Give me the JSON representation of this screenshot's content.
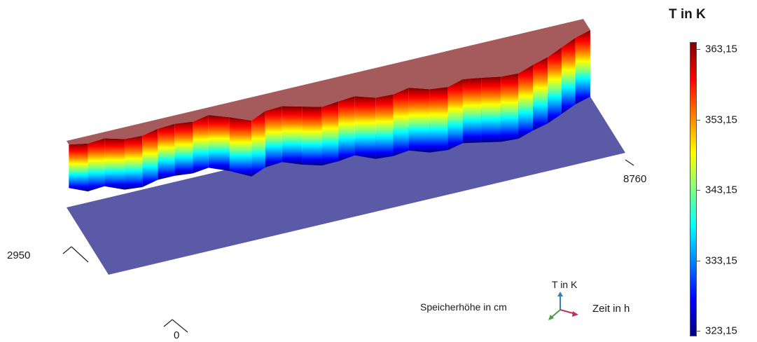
{
  "chart_data": {
    "type": "surface",
    "colorbar": {
      "title": "T in K",
      "ticks": [
        "363,15",
        "353,15",
        "343,15",
        "333,15",
        "323,15"
      ],
      "range": [
        323.15,
        363.15
      ],
      "colormap": [
        "#00007f",
        "#0000ff",
        "#0080ff",
        "#00ffff",
        "#80ff80",
        "#ffff00",
        "#ff8000",
        "#ff0000",
        "#7f0000"
      ]
    },
    "axes": {
      "height_label": "Speicherhöhe in cm",
      "time_label": "Zeit in h",
      "value_label": "T in K",
      "height_tick_max": "2950",
      "time_tick_max": "8760",
      "origin_tick": "0",
      "time_range_h": [
        0,
        8760
      ],
      "height_range_cm": [
        0,
        2950
      ]
    },
    "surface": {
      "hot_color": "#a55a5c",
      "cold_color": "#5a5aa6",
      "front_profile": [
        0.13,
        0.3,
        0.3,
        0.4,
        0.43,
        0.42,
        0.45,
        0.44,
        0.48,
        0.52,
        0.6,
        0.62,
        0.6,
        0.68,
        0.7,
        0.75,
        0.72,
        0.8,
        0.82,
        0.86,
        0.88,
        0.87,
        0.9,
        0.93,
        0.95,
        0.96,
        0.97,
        0.99,
        1.0,
        1.0,
        1.0
      ],
      "hot_fill_profile": [
        0.1,
        0.18,
        0.15,
        0.28,
        0.3,
        0.22,
        0.2,
        0.25,
        0.18,
        0.35,
        0.55,
        0.4,
        0.38,
        0.5,
        0.62,
        0.58,
        0.55,
        0.7,
        0.72,
        0.65,
        0.8,
        0.85,
        0.75,
        0.82,
        0.9,
        0.92,
        0.8,
        0.7,
        0.55,
        0.4,
        0.3
      ]
    }
  }
}
